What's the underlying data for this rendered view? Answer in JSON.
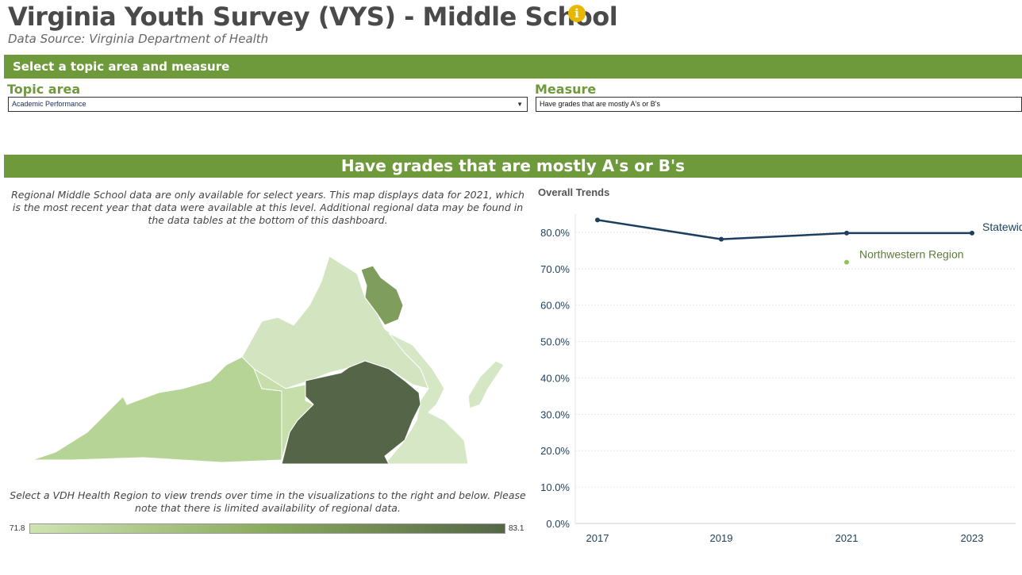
{
  "header": {
    "title": "Virginia Youth Survey (VYS) - Middle School",
    "subtitle": "Data Source: Virginia Department of Health",
    "info_icon": "info-icon"
  },
  "selector_bar": {
    "label": "Select a topic area and measure"
  },
  "topic": {
    "label": "Topic area",
    "value": "Academic Performance"
  },
  "measure": {
    "label": "Measure",
    "value": "Have grades that are mostly A's or B's"
  },
  "measure_bar": {
    "title": "Have grades that are mostly A's or B's"
  },
  "map": {
    "note": "Regional Middle School data are only available for select years. This map displays data for 2021, which is the most recent year that data were available at this level. Additional regional data may be found in the data tables at the bottom of this dashboard.",
    "instructions": "Select a VDH Health Region to view trends over time in the visualizations to the right and below. Please note that there is limited availability of regional data.",
    "legend_min": "71.8",
    "legend_max": "83.1",
    "colors": {
      "southwest": "#b7d497",
      "central": "#c6dea9",
      "northwest": "#d3e4c0",
      "northern": "#7f9d5c",
      "eastern": "#d6e7c6",
      "dark": "#556648"
    }
  },
  "chart_data": {
    "type": "line",
    "title": "Overall Trends",
    "x": [
      "2017",
      "2019",
      "2021",
      "2023"
    ],
    "ylim": [
      0,
      85
    ],
    "yticks": [
      "0.0%",
      "10.0%",
      "20.0%",
      "30.0%",
      "40.0%",
      "50.0%",
      "60.0%",
      "70.0%",
      "80.0%"
    ],
    "series": [
      {
        "name": "Statewide",
        "values": [
          83.4,
          78.1,
          79.8,
          79.8
        ],
        "color": "#1d3f5e"
      },
      {
        "name": "Northwestern Region",
        "values": [
          null,
          null,
          71.8,
          null
        ],
        "color": "#8cc45a"
      }
    ],
    "series_labels": [
      "Statewid",
      "Northwestern Region"
    ]
  }
}
